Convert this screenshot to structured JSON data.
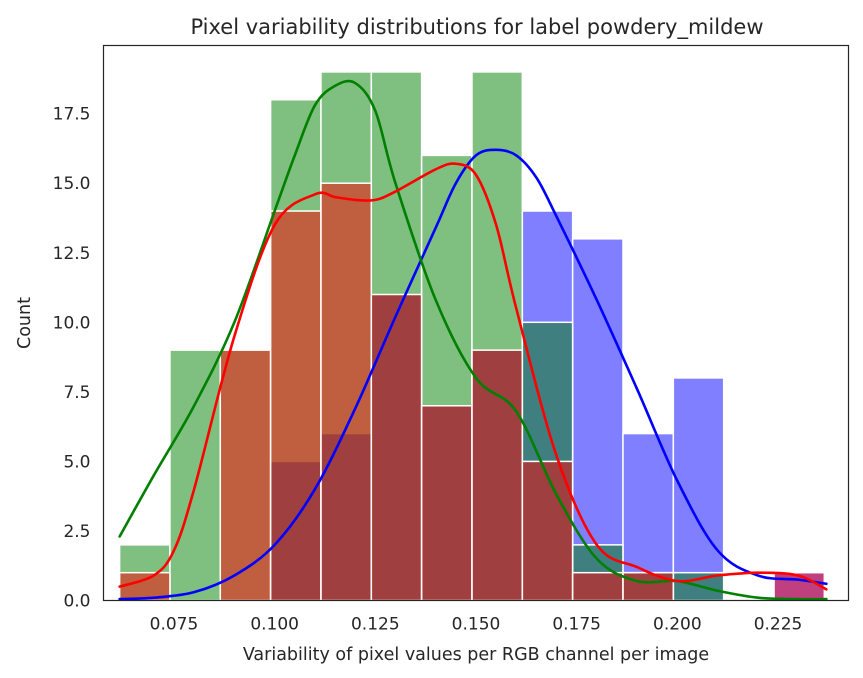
{
  "chart_data": {
    "type": "bar",
    "title": "Pixel variability distributions for label powdery_mildew",
    "xlabel": "Variability of pixel values per RGB channel per image",
    "ylabel": "Count",
    "xlim": [
      0.0575,
      0.2425
    ],
    "ylim": [
      0,
      19.95
    ],
    "grid": false,
    "legend": "none",
    "bin_start": 0.0615,
    "bin_width": 0.0125,
    "x_ticks": [
      0.075,
      0.1,
      0.125,
      0.15,
      0.175,
      0.2,
      0.225
    ],
    "x_tick_labels": [
      "0.075",
      "0.100",
      "0.125",
      "0.150",
      "0.175",
      "0.200",
      "0.225"
    ],
    "y_ticks": [
      0,
      2.5,
      5,
      7.5,
      10,
      12.5,
      15,
      17.5
    ],
    "y_tick_labels": [
      "0.0",
      "2.5",
      "5.0",
      "7.5",
      "10.0",
      "12.5",
      "15.0",
      "17.5"
    ],
    "series": [
      {
        "color": "#0000ff",
        "counts": [
          0,
          0,
          0,
          5,
          6,
          11,
          7,
          9,
          14,
          13,
          6,
          8,
          0,
          1
        ],
        "kde_x": [
          0.0615,
          0.07,
          0.08,
          0.09,
          0.1,
          0.11,
          0.12,
          0.13,
          0.14,
          0.145,
          0.15,
          0.155,
          0.16,
          0.165,
          0.17,
          0.18,
          0.19,
          0.2,
          0.21,
          0.22,
          0.23,
          0.237
        ],
        "kde_y": [
          0.05,
          0.1,
          0.3,
          0.9,
          2.0,
          4.0,
          6.9,
          10.2,
          13.4,
          15.0,
          16.0,
          16.2,
          16.0,
          15.2,
          13.8,
          10.8,
          7.6,
          4.3,
          1.8,
          0.9,
          0.75,
          0.6
        ]
      },
      {
        "color": "#008000",
        "counts": [
          2,
          9,
          9,
          18,
          19,
          19,
          16,
          19,
          10,
          2,
          1,
          1,
          0,
          0
        ],
        "kde_x": [
          0.0615,
          0.07,
          0.08,
          0.09,
          0.1,
          0.105,
          0.11,
          0.115,
          0.12,
          0.125,
          0.13,
          0.14,
          0.15,
          0.16,
          0.17,
          0.18,
          0.19,
          0.2,
          0.21,
          0.22,
          0.23,
          0.237
        ],
        "kde_y": [
          2.3,
          4.5,
          7.0,
          10.0,
          14.0,
          16.0,
          17.8,
          18.5,
          18.6,
          17.6,
          15.0,
          10.8,
          8.0,
          6.8,
          3.8,
          1.5,
          0.7,
          0.7,
          0.35,
          0.1,
          0.05,
          0.05
        ]
      },
      {
        "color": "#ff0000",
        "counts": [
          1,
          0,
          9,
          14,
          15,
          11,
          7,
          9,
          5,
          1,
          1,
          0,
          0,
          1
        ],
        "kde_x": [
          0.0615,
          0.07,
          0.075,
          0.08,
          0.09,
          0.1,
          0.11,
          0.115,
          0.12,
          0.125,
          0.13,
          0.14,
          0.145,
          0.15,
          0.155,
          0.16,
          0.17,
          0.18,
          0.19,
          0.2,
          0.21,
          0.22,
          0.23,
          0.237
        ],
        "kde_y": [
          0.5,
          0.9,
          1.8,
          4.0,
          9.5,
          13.5,
          14.6,
          14.5,
          14.4,
          14.4,
          14.7,
          15.5,
          15.7,
          15.3,
          13.5,
          10.5,
          5.2,
          2.0,
          1.2,
          0.7,
          0.9,
          1.0,
          0.9,
          0.4
        ]
      }
    ]
  }
}
